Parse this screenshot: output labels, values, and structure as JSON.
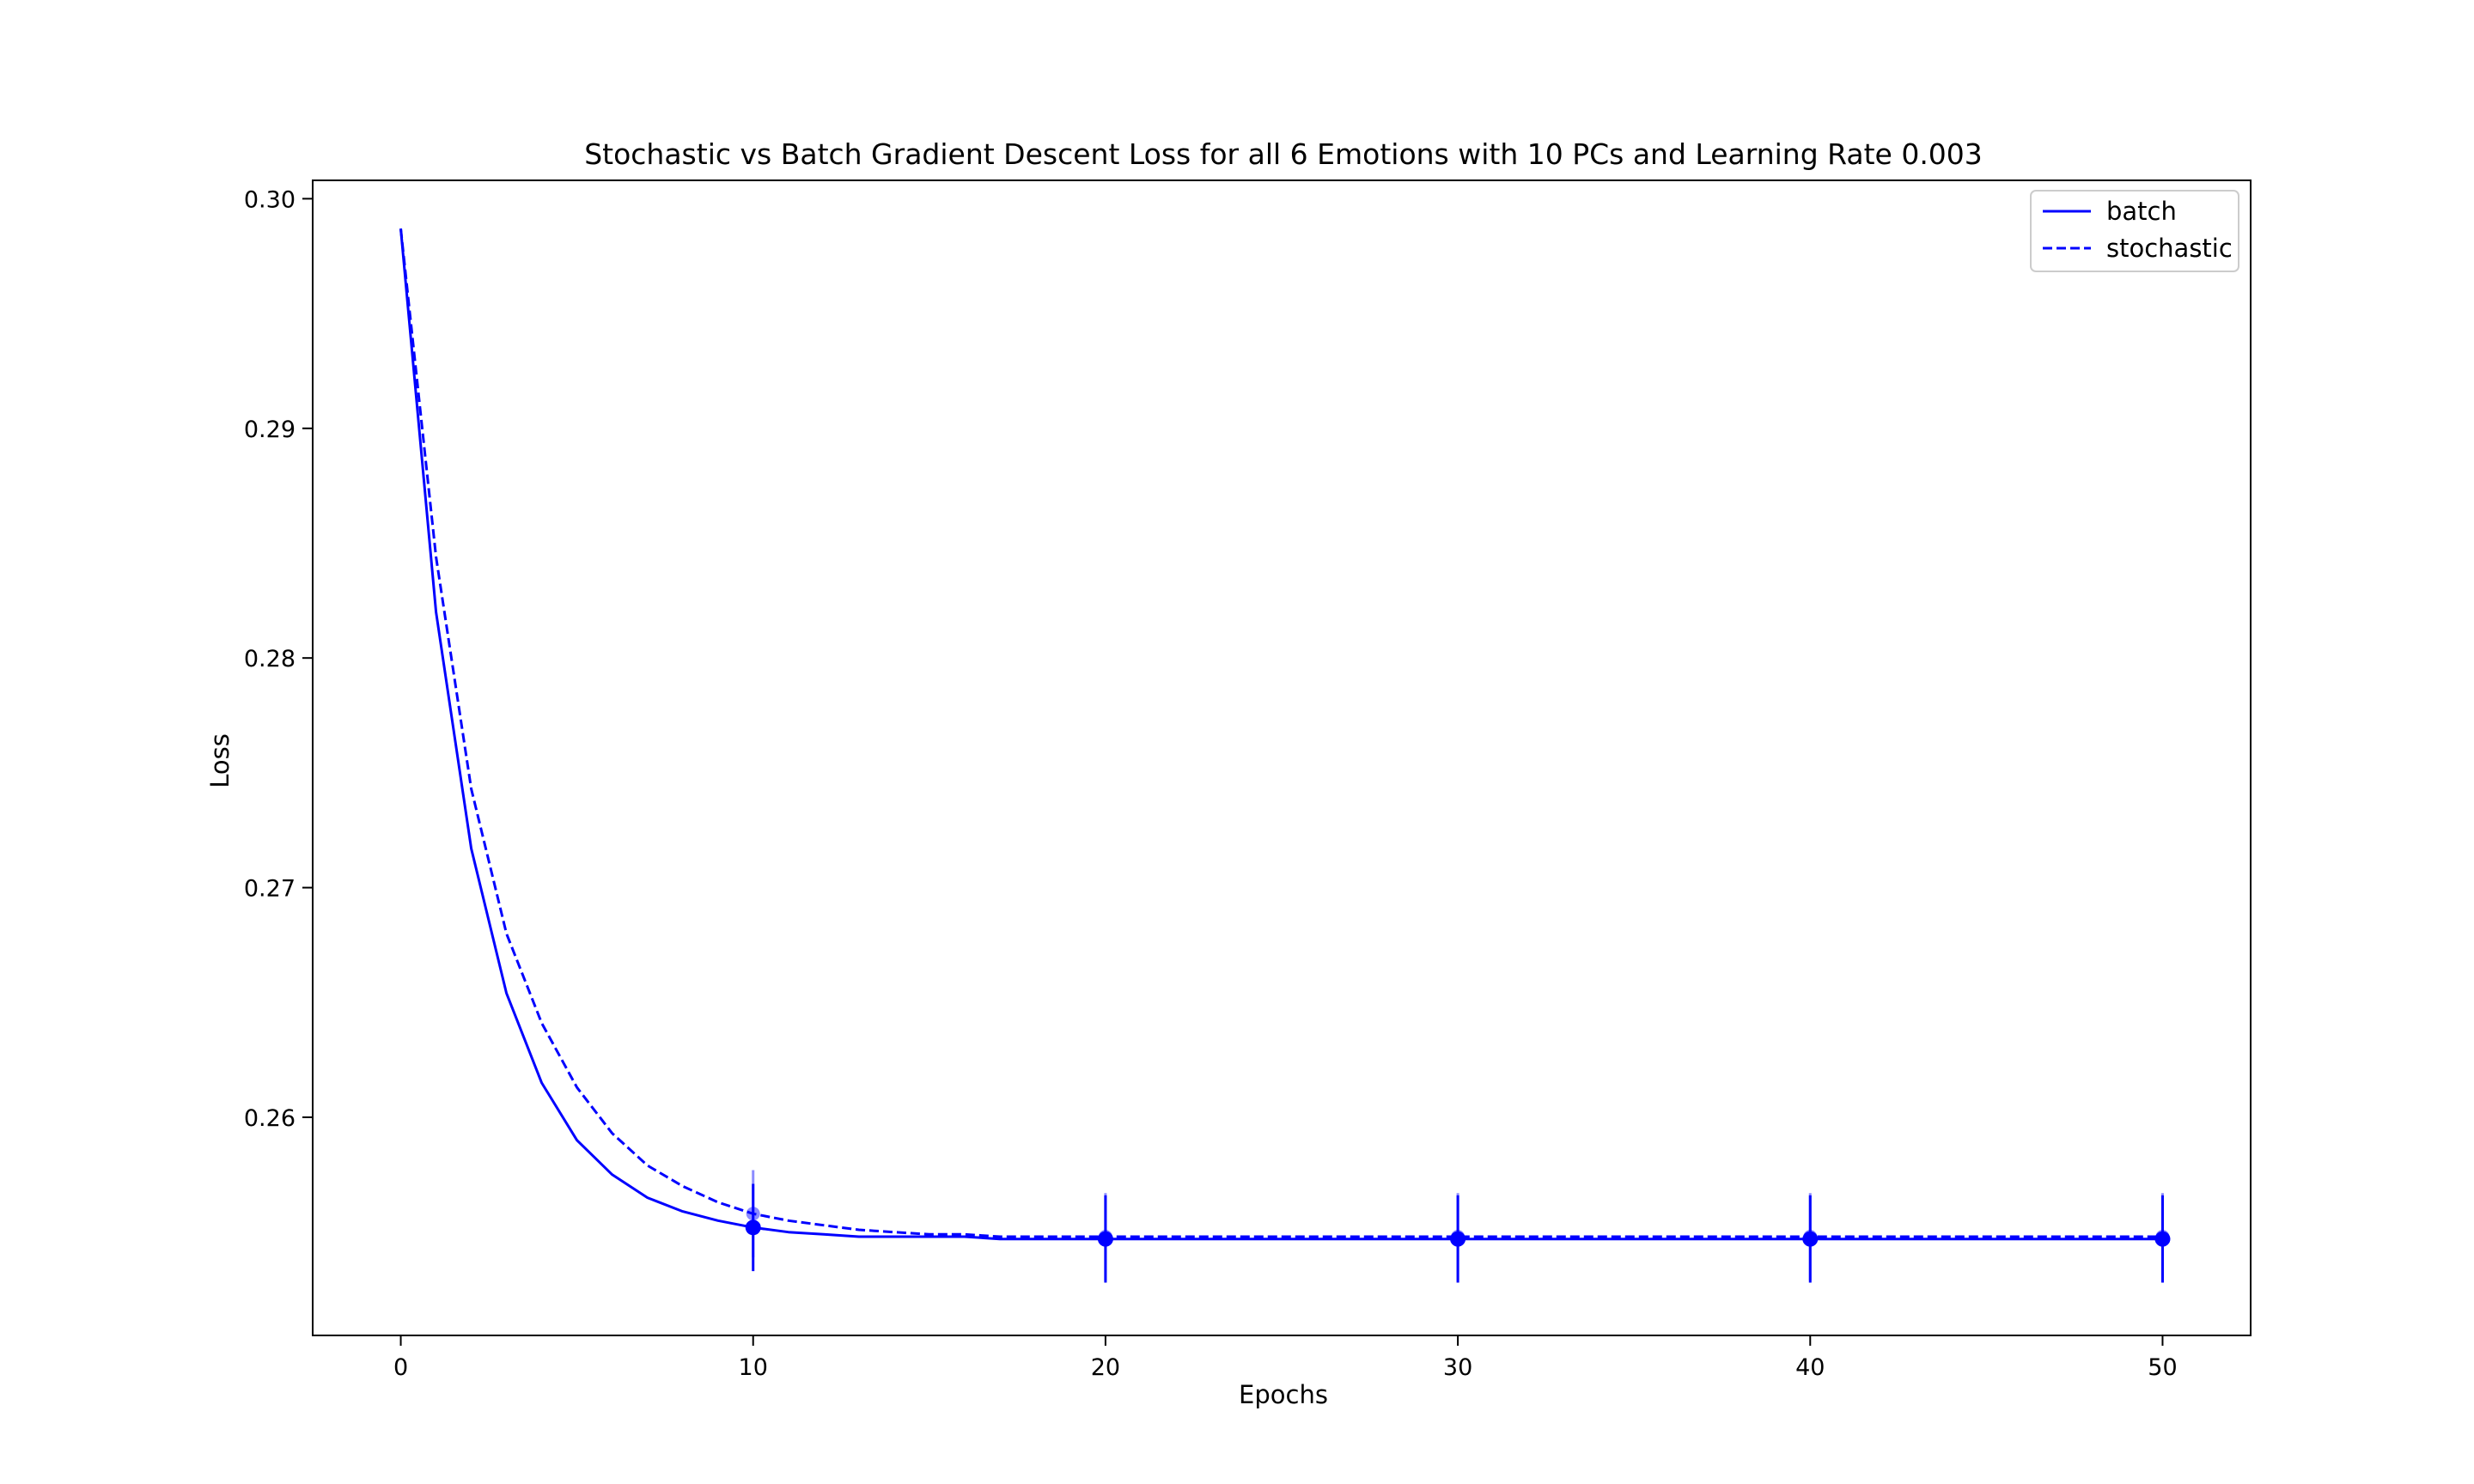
{
  "chart_data": {
    "type": "line",
    "title": "Stochastic vs Batch Gradient Descent Loss for all 6 Emotions with 10 PCs and Learning Rate 0.003",
    "xlabel": "Epochs",
    "ylabel": "Loss",
    "xlim": [
      -2.5,
      52.5
    ],
    "ylim": [
      0.2505,
      0.3008
    ],
    "xticks": [
      0,
      10,
      20,
      30,
      40,
      50
    ],
    "xtick_labels": [
      "0",
      "10",
      "20",
      "30",
      "40",
      "50"
    ],
    "yticks": [
      0.26,
      0.27,
      0.28,
      0.29,
      0.3
    ],
    "ytick_labels": [
      "0.26",
      "0.27",
      "0.28",
      "0.29",
      "0.30"
    ],
    "grid": false,
    "legend_position": "top-right",
    "series": [
      {
        "name": "batch",
        "style": "solid",
        "color": "#0000ff",
        "x": [
          0,
          1,
          2,
          3,
          4,
          5,
          6,
          7,
          8,
          9,
          10,
          11,
          12,
          13,
          14,
          15,
          16,
          17,
          18,
          19,
          20,
          21,
          22,
          23,
          24,
          25,
          26,
          27,
          28,
          29,
          30,
          31,
          32,
          33,
          34,
          35,
          36,
          37,
          38,
          39,
          40,
          41,
          42,
          43,
          44,
          45,
          46,
          47,
          48,
          49,
          50
        ],
        "values": [
          0.2987,
          0.282,
          0.2717,
          0.2654,
          0.2615,
          0.259,
          0.2575,
          0.2565,
          0.2559,
          0.2555,
          0.2552,
          0.255,
          0.2549,
          0.2548,
          0.2548,
          0.2548,
          0.2548,
          0.2547,
          0.2547,
          0.2547,
          0.2547,
          0.2547,
          0.2547,
          0.2547,
          0.2547,
          0.2547,
          0.2547,
          0.2547,
          0.2547,
          0.2547,
          0.2547,
          0.2547,
          0.2547,
          0.2547,
          0.2547,
          0.2547,
          0.2547,
          0.2547,
          0.2547,
          0.2547,
          0.2547,
          0.2547,
          0.2547,
          0.2547,
          0.2547,
          0.2547,
          0.2547,
          0.2547,
          0.2547,
          0.2547,
          0.2547
        ],
        "error_bars": {
          "x": [
            10,
            20,
            30,
            40,
            50
          ],
          "y": [
            0.2552,
            0.2547,
            0.2547,
            0.2547,
            0.2547
          ],
          "err": [
            0.0019,
            0.0019,
            0.0019,
            0.0019,
            0.0019
          ]
        }
      },
      {
        "name": "stochastic",
        "style": "dashed",
        "color": "#0000ff",
        "x": [
          0,
          1,
          2,
          3,
          4,
          5,
          6,
          7,
          8,
          9,
          10,
          11,
          12,
          13,
          14,
          15,
          16,
          17,
          18,
          19,
          20,
          21,
          22,
          23,
          24,
          25,
          26,
          27,
          28,
          29,
          30,
          31,
          32,
          33,
          34,
          35,
          36,
          37,
          38,
          39,
          40,
          41,
          42,
          43,
          44,
          45,
          46,
          47,
          48,
          49,
          50
        ],
        "values": [
          0.2987,
          0.2844,
          0.2743,
          0.268,
          0.2641,
          0.2613,
          0.2593,
          0.2579,
          0.257,
          0.2563,
          0.2558,
          0.2555,
          0.2553,
          0.2551,
          0.255,
          0.2549,
          0.2549,
          0.2548,
          0.2548,
          0.2548,
          0.2548,
          0.2548,
          0.2548,
          0.2548,
          0.2548,
          0.2548,
          0.2548,
          0.2548,
          0.2548,
          0.2548,
          0.2548,
          0.2548,
          0.2548,
          0.2548,
          0.2548,
          0.2548,
          0.2548,
          0.2548,
          0.2548,
          0.2548,
          0.2548,
          0.2548,
          0.2548,
          0.2548,
          0.2548,
          0.2548,
          0.2548,
          0.2548,
          0.2548,
          0.2548,
          0.2548
        ],
        "error_bars": {
          "x": [
            10,
            20,
            30,
            40,
            50
          ],
          "y": [
            0.2558,
            0.2548,
            0.2548,
            0.2548,
            0.2548
          ],
          "err": [
            0.0019,
            0.0019,
            0.0019,
            0.0019,
            0.0019
          ]
        }
      }
    ]
  }
}
